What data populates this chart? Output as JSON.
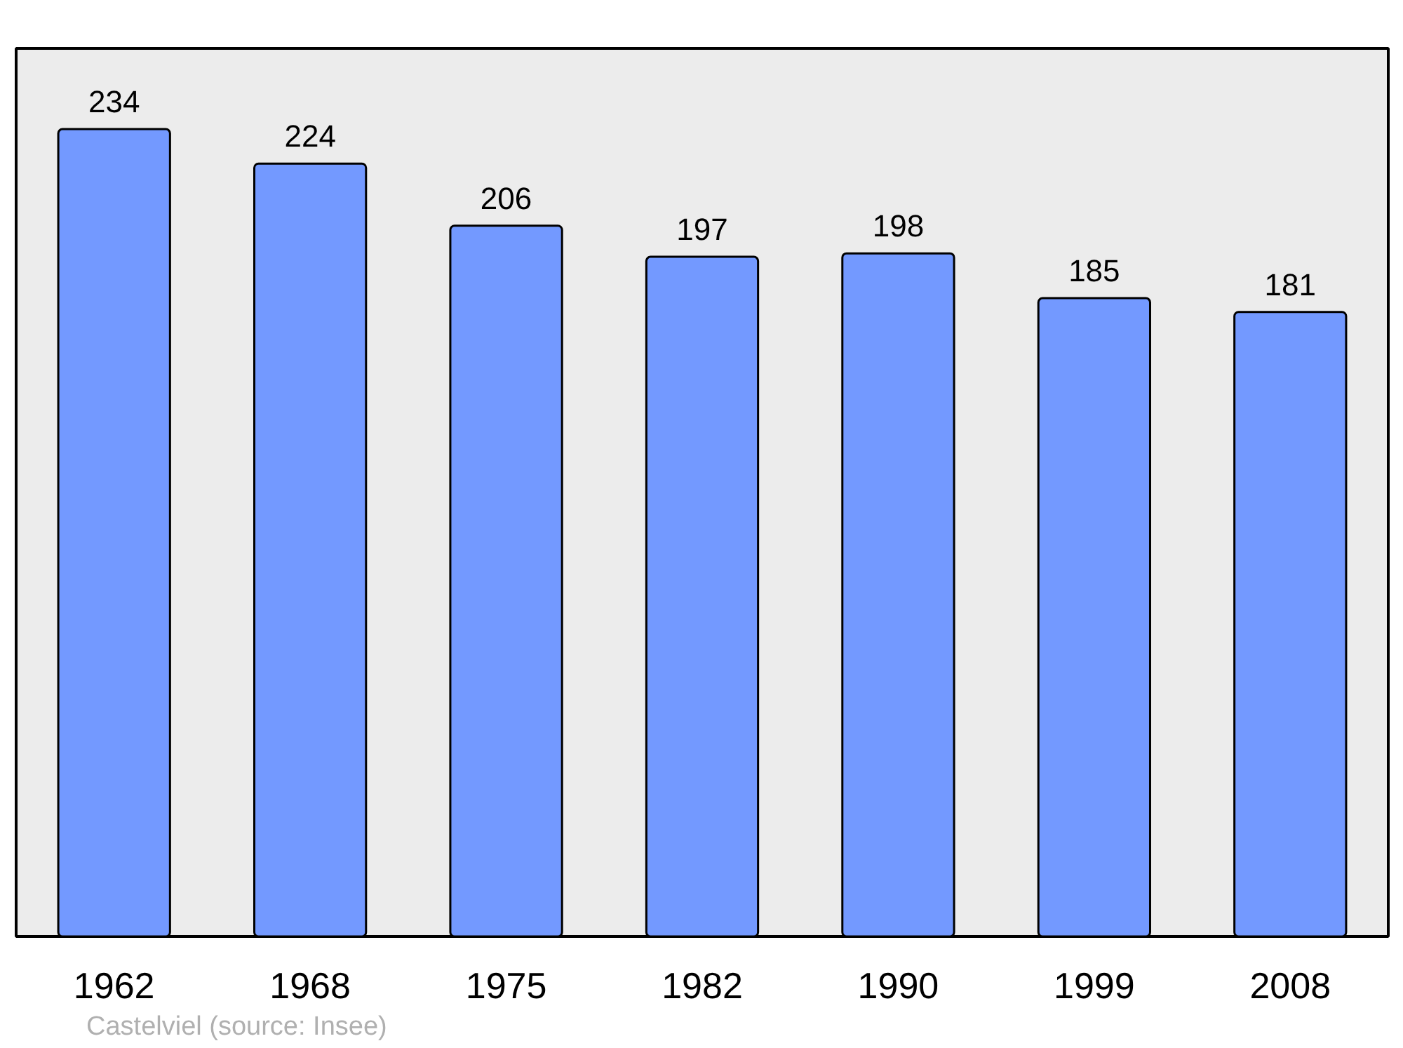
{
  "chart_data": {
    "type": "bar",
    "categories": [
      "1962",
      "1968",
      "1975",
      "1982",
      "1990",
      "1999",
      "2008"
    ],
    "values": [
      234,
      224,
      206,
      197,
      198,
      185,
      181
    ],
    "color": "#7399ff",
    "data_labels": true,
    "annotations": [
      "Castelviel    (source: Insee)"
    ]
  }
}
